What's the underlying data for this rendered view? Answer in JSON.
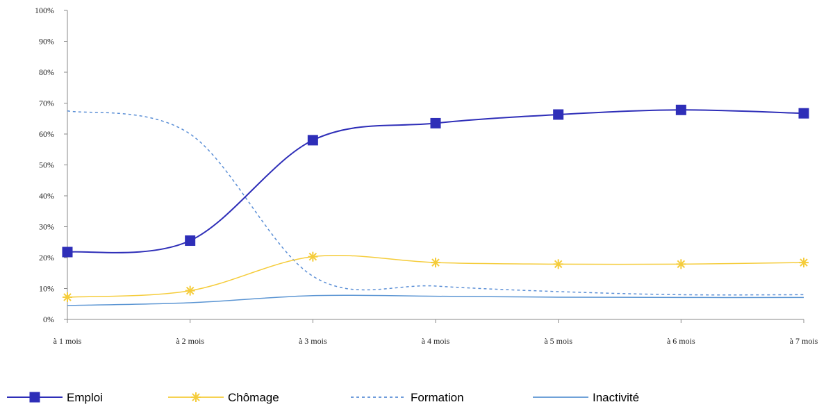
{
  "chart_data": {
    "type": "line",
    "categories": [
      "à 1 mois",
      "à 2 mois",
      "à 3 mois",
      "à 4 mois",
      "à 5 mois",
      "à 6 mois",
      "à 7 mois"
    ],
    "y_ticks": [
      "0%",
      "10%",
      "20%",
      "30%",
      "40%",
      "50%",
      "60%",
      "70%",
      "80%",
      "90%",
      "100%"
    ],
    "ylim": [
      0,
      100
    ],
    "grid": false,
    "legend_position": "bottom",
    "series": [
      {
        "name": "Emploi",
        "values": [
          21.8,
          25.5,
          58.0,
          63.5,
          66.3,
          67.8,
          66.7
        ],
        "color": "#2e2eb8",
        "marker": "square",
        "line_style": "solid"
      },
      {
        "name": "Chômage",
        "values": [
          7.2,
          9.3,
          20.3,
          18.4,
          17.9,
          17.9,
          18.4
        ],
        "color": "#f5cc3a",
        "marker": "asterisk",
        "line_style": "solid"
      },
      {
        "name": "Formation",
        "values": [
          67.5,
          60.0,
          14.0,
          10.8,
          9.0,
          8.0,
          8.0
        ],
        "color": "#5b8fd6",
        "marker": "none",
        "line_style": "dashed"
      },
      {
        "name": "Inactivité",
        "values": [
          4.5,
          5.4,
          7.7,
          7.5,
          7.2,
          7.1,
          7.1
        ],
        "color": "#5b95d3",
        "marker": "none",
        "line_style": "solid"
      }
    ]
  }
}
